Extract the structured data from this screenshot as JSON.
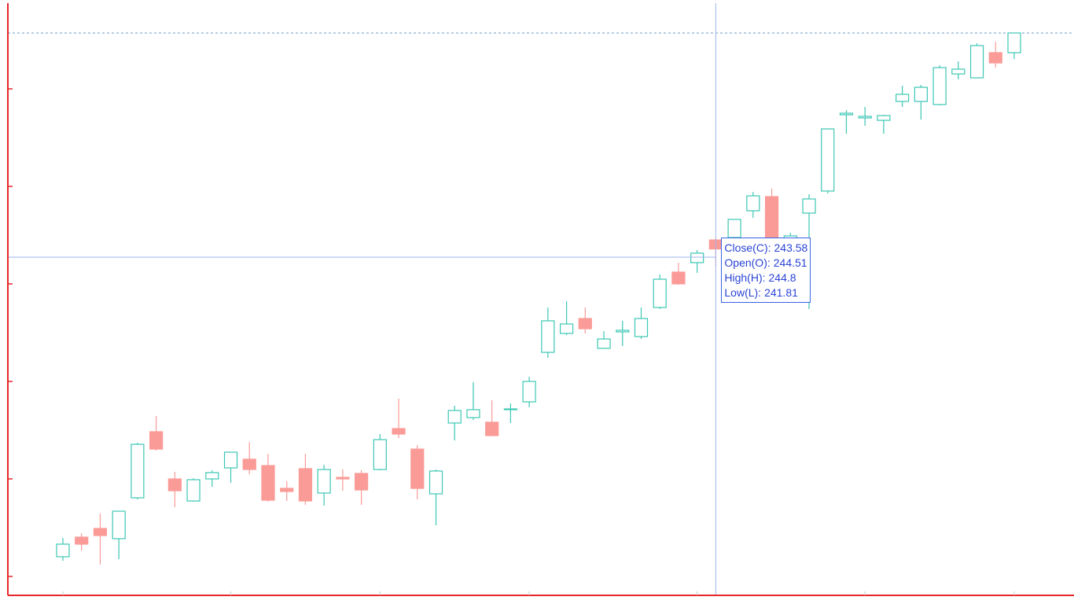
{
  "chart_data": {
    "type": "candlestick",
    "categories": [
      null,
      null,
      null,
      null,
      null,
      null,
      null,
      null,
      null,
      null,
      null,
      null,
      null,
      null,
      null,
      null,
      null,
      null,
      null,
      null,
      null,
      null,
      null,
      null,
      null,
      null,
      null,
      null,
      null,
      null,
      null,
      null,
      null,
      null,
      null,
      null,
      null,
      null,
      null,
      null,
      null,
      null,
      null,
      null,
      null,
      null,
      null,
      null,
      null,
      null,
      null,
      null
    ],
    "open": [
      212.02,
      214.03,
      214.92,
      213.87,
      218.06,
      224.84,
      220.0,
      217.74,
      220.0,
      221.13,
      222.02,
      221.37,
      219.03,
      221.05,
      218.55,
      220.16,
      220.56,
      220.97,
      225.16,
      223.06,
      218.47,
      225.73,
      226.29,
      225.81,
      227.1,
      227.9,
      232.98,
      234.92,
      236.45,
      233.39,
      235.08,
      234.6,
      237.58,
      241.21,
      242.18,
      244.51,
      244.76,
      247.5,
      248.95,
      243.47,
      247.26,
      249.52,
      257.34,
      257.02,
      256.77,
      258.71,
      258.71,
      258.39,
      261.53,
      261.13,
      263.71,
      263.71
    ],
    "high": [
      213.95,
      214.44,
      216.45,
      216.69,
      223.71,
      226.45,
      220.73,
      220.08,
      220.89,
      222.74,
      223.79,
      222.58,
      219.76,
      222.58,
      221.45,
      220.97,
      220.89,
      224.6,
      228.23,
      223.47,
      220.97,
      227.5,
      229.92,
      228.06,
      227.74,
      230.48,
      237.58,
      238.23,
      237.58,
      235.16,
      236.21,
      237.58,
      240.97,
      242.18,
      243.47,
      244.8,
      246.61,
      249.44,
      249.76,
      245.24,
      249.19,
      255.89,
      257.82,
      258.15,
      257.34,
      260.32,
      260.4,
      262.42,
      262.82,
      264.68,
      264.84,
      265.73
    ],
    "low": [
      211.61,
      212.66,
      211.21,
      211.77,
      217.9,
      222.9,
      217.1,
      217.66,
      219.19,
      219.6,
      220.48,
      217.66,
      217.74,
      217.34,
      217.26,
      218.79,
      217.34,
      220.89,
      224.19,
      217.9,
      215.24,
      223.95,
      226.05,
      224.44,
      225.73,
      227.34,
      232.42,
      234.76,
      234.92,
      233.39,
      233.63,
      234.35,
      237.42,
      239.92,
      241.13,
      241.81,
      244.11,
      246.77,
      244.11,
      242.5,
      237.42,
      249.27,
      255.4,
      256.21,
      255.4,
      258.15,
      256.85,
      258.31,
      260.97,
      261.13,
      262.18,
      263.06
    ],
    "close": [
      213.31,
      213.31,
      214.19,
      216.69,
      223.55,
      223.06,
      218.79,
      219.92,
      220.65,
      222.74,
      220.97,
      217.82,
      218.71,
      217.74,
      220.97,
      220.0,
      218.87,
      224.03,
      224.6,
      219.03,
      220.81,
      227.02,
      227.1,
      224.44,
      227.18,
      230.0,
      236.21,
      235.89,
      235.4,
      234.35,
      235.24,
      236.45,
      240.48,
      240.0,
      243.15,
      243.58,
      246.61,
      249.03,
      244.52,
      244.92,
      248.71,
      255.89,
      257.5,
      257.18,
      257.26,
      259.44,
      260.16,
      262.18,
      262.02,
      264.44,
      262.66,
      265.73
    ],
    "up_color": "#3cc7b4",
    "down_color": "#fb9b97",
    "axis_color": "#e8262a",
    "ylim": [
      208.06,
      268.79
    ],
    "yticks": [
      210,
      220,
      230,
      240,
      250,
      260
    ],
    "xticks": [
      0,
      9,
      17,
      25,
      34,
      43,
      51
    ],
    "last_price_line": true,
    "crosshair": {
      "index": 35,
      "value": 242.74,
      "color": "#9fb4ee"
    },
    "tooltip": {
      "index": 35,
      "color": "#2a43d6",
      "items": [
        {
          "label": "Close(C):",
          "field": "close"
        },
        {
          "label": "Open(O):",
          "field": "open"
        },
        {
          "label": "High(H):",
          "field": "high"
        },
        {
          "label": "Low(L):",
          "field": "low"
        }
      ]
    }
  }
}
